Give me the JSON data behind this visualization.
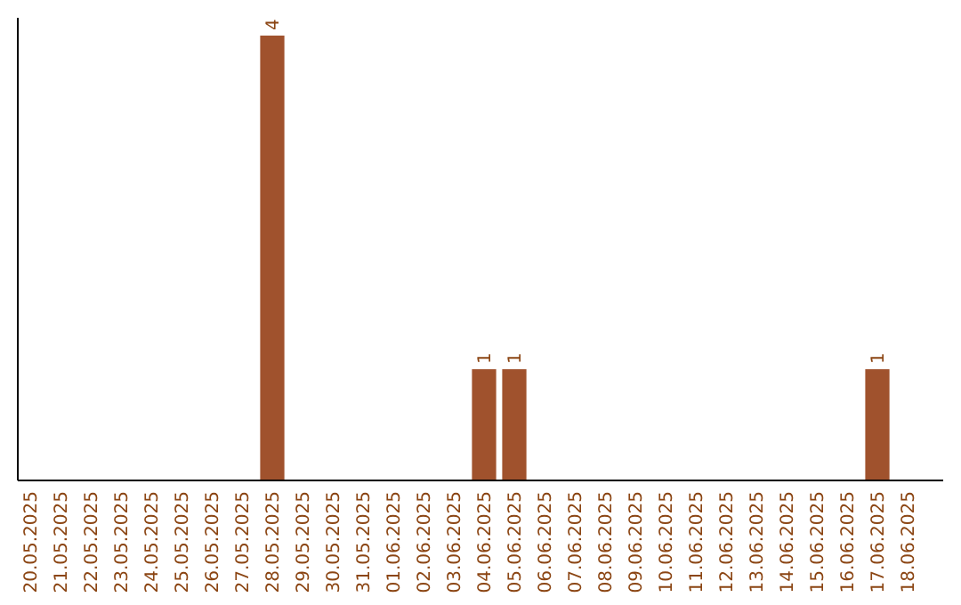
{
  "chart_data": {
    "type": "bar",
    "categories": [
      "20.05.2025",
      "21.05.2025",
      "22.05.2025",
      "23.05.2025",
      "24.05.2025",
      "25.05.2025",
      "26.05.2025",
      "27.05.2025",
      "28.05.2025",
      "29.05.2025",
      "30.05.2025",
      "31.05.2025",
      "01.06.2025",
      "02.06.2025",
      "03.06.2025",
      "04.06.2025",
      "05.06.2025",
      "06.06.2025",
      "07.06.2025",
      "08.06.2025",
      "09.06.2025",
      "10.06.2025",
      "11.06.2025",
      "12.06.2025",
      "13.06.2025",
      "14.06.2025",
      "15.06.2025",
      "16.06.2025",
      "17.06.2025",
      "18.06.2025"
    ],
    "values": [
      0,
      0,
      0,
      0,
      0,
      0,
      0,
      0,
      4,
      0,
      0,
      0,
      0,
      0,
      0,
      1,
      1,
      0,
      0,
      0,
      0,
      0,
      0,
      0,
      0,
      0,
      0,
      0,
      1,
      0
    ],
    "value_labels": [
      null,
      null,
      null,
      null,
      null,
      null,
      null,
      null,
      "4",
      null,
      null,
      null,
      null,
      null,
      null,
      "1",
      "1",
      null,
      null,
      null,
      null,
      null,
      null,
      null,
      null,
      null,
      null,
      null,
      "1",
      null
    ],
    "color": "#a0522d",
    "ylim": [
      0,
      4.16
    ],
    "tick_labels": "x"
  }
}
